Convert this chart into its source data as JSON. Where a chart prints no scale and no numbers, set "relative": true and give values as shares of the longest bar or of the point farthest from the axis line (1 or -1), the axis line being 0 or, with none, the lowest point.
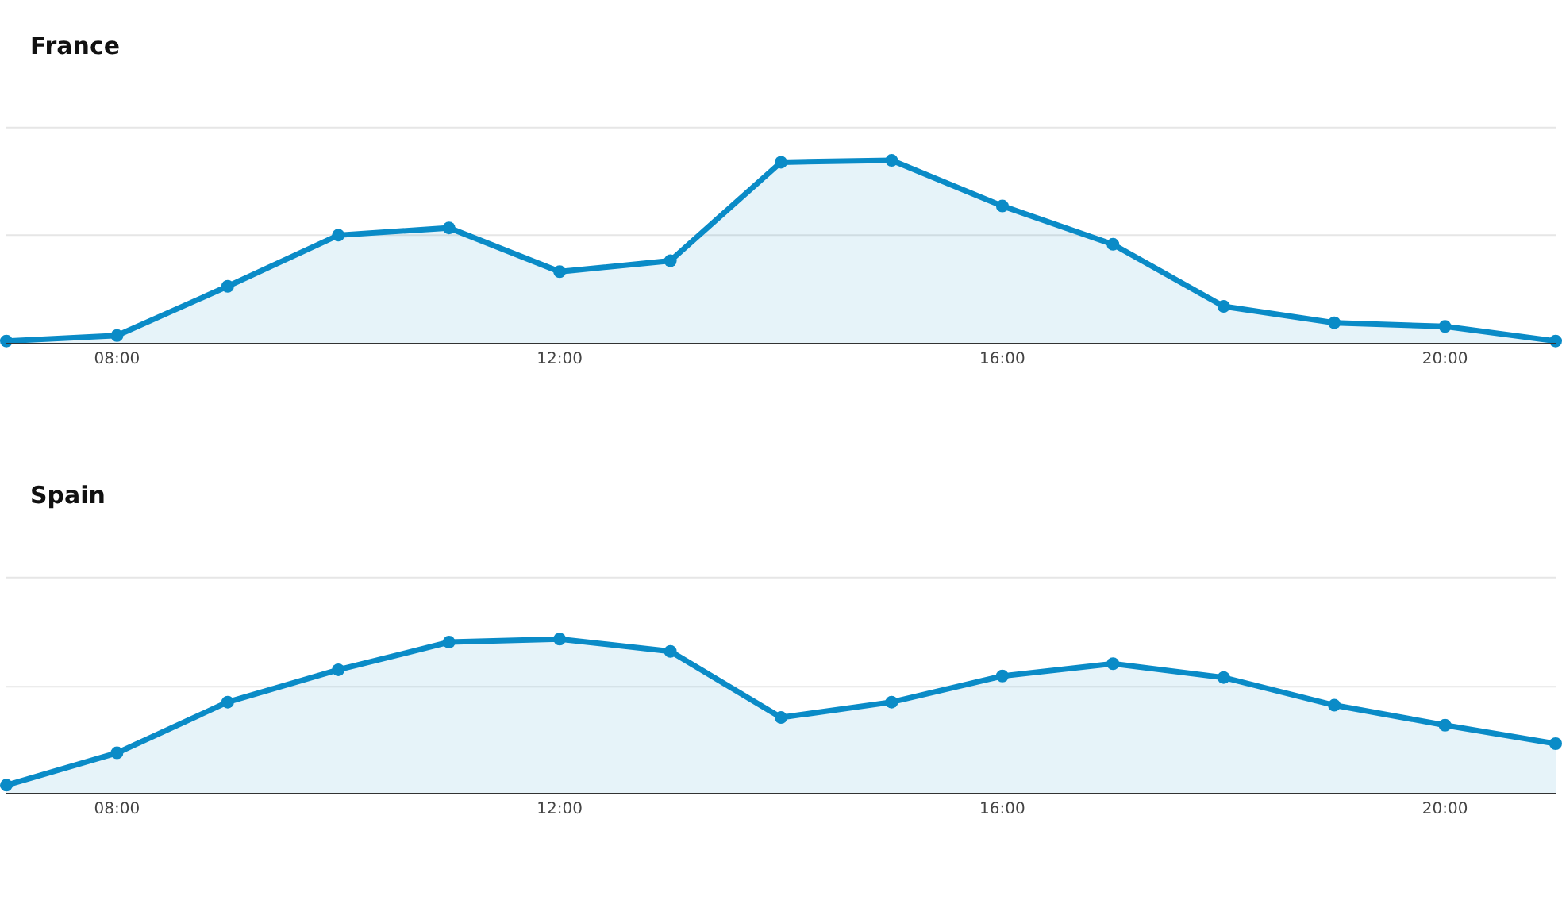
{
  "chart_data": [
    {
      "type": "area",
      "title": "France",
      "relative": true,
      "x": [
        7,
        8,
        9,
        10,
        11,
        12,
        13,
        14,
        15,
        16,
        17,
        18,
        19,
        20,
        21
      ],
      "xlim": [
        7,
        21
      ],
      "xticks": [
        {
          "value": 8,
          "label": "08:00"
        },
        {
          "value": 12,
          "label": "12:00"
        },
        {
          "value": 16,
          "label": "16:00"
        },
        {
          "value": 20,
          "label": "20:00"
        }
      ],
      "ref_lines": [
        {
          "axis": "y",
          "value": 0.59,
          "color": "#e6e6e6"
        },
        {
          "axis": "y",
          "value": 1.18,
          "color": "#e6e6e6"
        }
      ],
      "marker": "circle",
      "line_style": "solid",
      "tick_labels": "x",
      "series": [
        {
          "color": "#0a8bc7",
          "values": [
            0.01,
            0.04,
            0.31,
            0.59,
            0.63,
            0.39,
            0.45,
            0.99,
            1,
            0.75,
            0.54,
            0.2,
            0.11,
            0.09,
            0.01
          ]
        }
      ]
    },
    {
      "type": "area",
      "title": "Spain",
      "relative": true,
      "x": [
        7,
        8,
        9,
        10,
        11,
        12,
        13,
        14,
        15,
        16,
        17,
        18,
        19,
        20,
        21
      ],
      "xlim": [
        7,
        21
      ],
      "xticks": [
        {
          "value": 8,
          "label": "08:00"
        },
        {
          "value": 12,
          "label": "12:00"
        },
        {
          "value": 16,
          "label": "16:00"
        },
        {
          "value": 20,
          "label": "20:00"
        }
      ],
      "ref_lines": [
        {
          "axis": "y",
          "value": 0.69,
          "color": "#e6e6e6"
        },
        {
          "axis": "y",
          "value": 1.4,
          "color": "#e6e6e6"
        }
      ],
      "marker": "circle",
      "line_style": "solid",
      "tick_labels": "x",
      "series": [
        {
          "color": "#0a8bc7",
          "values": [
            0.05,
            0.26,
            0.59,
            0.8,
            0.98,
            1,
            0.92,
            0.49,
            0.59,
            0.76,
            0.84,
            0.75,
            0.57,
            0.44,
            0.32
          ]
        }
      ]
    }
  ]
}
